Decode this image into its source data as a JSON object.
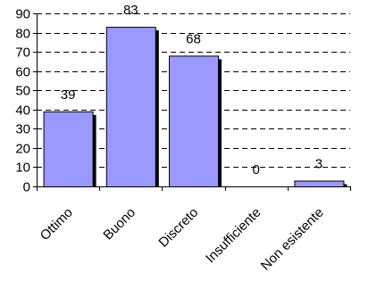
{
  "chart_data": {
    "type": "bar",
    "categories": [
      "Ottimo",
      "Buono",
      "Discreto",
      "Insufficiente",
      "Non esistente"
    ],
    "values": [
      39,
      83,
      68,
      0,
      3
    ],
    "data_labels": [
      "39",
      "83",
      "68",
      "0",
      "3"
    ],
    "ylim": [
      0,
      90
    ],
    "yticks": [
      0,
      10,
      20,
      30,
      40,
      50,
      60,
      70,
      80,
      90
    ],
    "ytick_labels": [
      "0",
      "10",
      "20",
      "30",
      "40",
      "50",
      "60",
      "70",
      "80",
      "90"
    ],
    "grid": true,
    "grid_style": "dashed",
    "legend": "none",
    "title": "",
    "xlabel": "",
    "ylabel": "",
    "colors": {
      "bar_fill": "#9999ff",
      "bar_edge": "#000000",
      "bar_shadow": "#000000",
      "grid": "#000000",
      "axis": "#000000"
    }
  }
}
